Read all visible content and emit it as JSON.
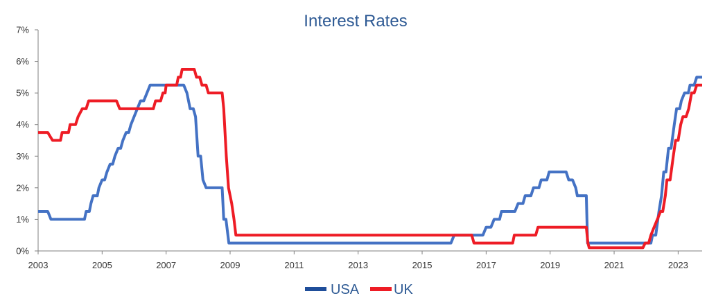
{
  "chart_data": {
    "type": "line",
    "title": "Interest Rates",
    "xlabel": "",
    "ylabel": "",
    "xlim": [
      2003.0,
      2023.75
    ],
    "ylim": [
      0,
      7
    ],
    "x_ticks": [
      2003,
      2005,
      2007,
      2009,
      2011,
      2013,
      2015,
      2017,
      2019,
      2021,
      2023
    ],
    "x_tick_labels": [
      "2003",
      "2005",
      "2007",
      "2009",
      "2011",
      "2013",
      "2015",
      "2017",
      "2019",
      "2021",
      "2023"
    ],
    "y_ticks": [
      0,
      1,
      2,
      3,
      4,
      5,
      6,
      7
    ],
    "y_tick_labels": [
      "0%",
      "1%",
      "2%",
      "3%",
      "4%",
      "5%",
      "6%",
      "7%"
    ],
    "grid": false,
    "legend_position": "bottom-center",
    "series": [
      {
        "name": "USA",
        "color": "#4472c4",
        "legend_color": "#1f4e9a",
        "points": [
          [
            2003.0,
            1.25
          ],
          [
            2003.3,
            1.25
          ],
          [
            2003.4,
            1.0
          ],
          [
            2004.45,
            1.0
          ],
          [
            2004.5,
            1.25
          ],
          [
            2004.6,
            1.25
          ],
          [
            2004.65,
            1.5
          ],
          [
            2004.72,
            1.75
          ],
          [
            2004.85,
            1.75
          ],
          [
            2004.9,
            2.0
          ],
          [
            2005.0,
            2.25
          ],
          [
            2005.08,
            2.25
          ],
          [
            2005.15,
            2.5
          ],
          [
            2005.25,
            2.75
          ],
          [
            2005.33,
            2.75
          ],
          [
            2005.4,
            3.0
          ],
          [
            2005.5,
            3.25
          ],
          [
            2005.58,
            3.25
          ],
          [
            2005.65,
            3.5
          ],
          [
            2005.75,
            3.75
          ],
          [
            2005.83,
            3.75
          ],
          [
            2005.9,
            4.0
          ],
          [
            2006.0,
            4.25
          ],
          [
            2006.1,
            4.5
          ],
          [
            2006.2,
            4.75
          ],
          [
            2006.3,
            4.75
          ],
          [
            2006.4,
            5.0
          ],
          [
            2006.5,
            5.25
          ],
          [
            2007.55,
            5.25
          ],
          [
            2007.65,
            5.0
          ],
          [
            2007.75,
            4.5
          ],
          [
            2007.85,
            4.5
          ],
          [
            2007.92,
            4.25
          ],
          [
            2008.0,
            3.0
          ],
          [
            2008.08,
            3.0
          ],
          [
            2008.15,
            2.25
          ],
          [
            2008.25,
            2.0
          ],
          [
            2008.75,
            2.0
          ],
          [
            2008.8,
            1.0
          ],
          [
            2008.87,
            1.0
          ],
          [
            2008.96,
            0.25
          ],
          [
            2015.9,
            0.25
          ],
          [
            2016.0,
            0.5
          ],
          [
            2016.9,
            0.5
          ],
          [
            2017.0,
            0.75
          ],
          [
            2017.15,
            0.75
          ],
          [
            2017.25,
            1.0
          ],
          [
            2017.42,
            1.0
          ],
          [
            2017.48,
            1.25
          ],
          [
            2017.9,
            1.25
          ],
          [
            2018.0,
            1.5
          ],
          [
            2018.15,
            1.5
          ],
          [
            2018.22,
            1.75
          ],
          [
            2018.4,
            1.75
          ],
          [
            2018.48,
            2.0
          ],
          [
            2018.65,
            2.0
          ],
          [
            2018.72,
            2.25
          ],
          [
            2018.9,
            2.25
          ],
          [
            2018.97,
            2.5
          ],
          [
            2019.5,
            2.5
          ],
          [
            2019.58,
            2.25
          ],
          [
            2019.7,
            2.25
          ],
          [
            2019.8,
            2.0
          ],
          [
            2019.85,
            1.75
          ],
          [
            2020.13,
            1.75
          ],
          [
            2020.17,
            0.25
          ],
          [
            2022.15,
            0.25
          ],
          [
            2022.2,
            0.5
          ],
          [
            2022.3,
            0.5
          ],
          [
            2022.4,
            1.25
          ],
          [
            2022.48,
            1.75
          ],
          [
            2022.55,
            2.5
          ],
          [
            2022.62,
            2.5
          ],
          [
            2022.7,
            3.25
          ],
          [
            2022.78,
            3.25
          ],
          [
            2022.88,
            4.0
          ],
          [
            2022.95,
            4.5
          ],
          [
            2023.05,
            4.5
          ],
          [
            2023.1,
            4.75
          ],
          [
            2023.2,
            5.0
          ],
          [
            2023.32,
            5.0
          ],
          [
            2023.37,
            5.25
          ],
          [
            2023.5,
            5.25
          ],
          [
            2023.58,
            5.5
          ],
          [
            2023.75,
            5.5
          ]
        ]
      },
      {
        "name": "UK",
        "color": "#ee1c25",
        "legend_color": "#ee1c25",
        "points": [
          [
            2003.0,
            3.75
          ],
          [
            2003.3,
            3.75
          ],
          [
            2003.45,
            3.5
          ],
          [
            2003.7,
            3.5
          ],
          [
            2003.75,
            3.75
          ],
          [
            2003.95,
            3.75
          ],
          [
            2004.0,
            4.0
          ],
          [
            2004.17,
            4.0
          ],
          [
            2004.25,
            4.25
          ],
          [
            2004.38,
            4.5
          ],
          [
            2004.5,
            4.5
          ],
          [
            2004.58,
            4.75
          ],
          [
            2005.45,
            4.75
          ],
          [
            2005.55,
            4.5
          ],
          [
            2006.6,
            4.5
          ],
          [
            2006.67,
            4.75
          ],
          [
            2006.83,
            4.75
          ],
          [
            2006.9,
            5.0
          ],
          [
            2006.97,
            5.0
          ],
          [
            2007.0,
            5.25
          ],
          [
            2007.33,
            5.25
          ],
          [
            2007.38,
            5.5
          ],
          [
            2007.45,
            5.5
          ],
          [
            2007.5,
            5.75
          ],
          [
            2007.88,
            5.75
          ],
          [
            2007.95,
            5.5
          ],
          [
            2008.05,
            5.5
          ],
          [
            2008.12,
            5.25
          ],
          [
            2008.25,
            5.25
          ],
          [
            2008.32,
            5.0
          ],
          [
            2008.75,
            5.0
          ],
          [
            2008.8,
            4.5
          ],
          [
            2008.88,
            3.0
          ],
          [
            2008.95,
            2.0
          ],
          [
            2009.05,
            1.5
          ],
          [
            2009.12,
            1.0
          ],
          [
            2009.18,
            0.5
          ],
          [
            2016.55,
            0.5
          ],
          [
            2016.62,
            0.25
          ],
          [
            2017.83,
            0.25
          ],
          [
            2017.88,
            0.5
          ],
          [
            2018.55,
            0.5
          ],
          [
            2018.62,
            0.75
          ],
          [
            2020.13,
            0.75
          ],
          [
            2020.18,
            0.25
          ],
          [
            2020.22,
            0.1
          ],
          [
            2021.9,
            0.1
          ],
          [
            2021.97,
            0.25
          ],
          [
            2022.08,
            0.25
          ],
          [
            2022.15,
            0.5
          ],
          [
            2022.25,
            0.75
          ],
          [
            2022.35,
            1.0
          ],
          [
            2022.45,
            1.25
          ],
          [
            2022.52,
            1.25
          ],
          [
            2022.6,
            1.75
          ],
          [
            2022.65,
            2.25
          ],
          [
            2022.75,
            2.25
          ],
          [
            2022.85,
            3.0
          ],
          [
            2022.92,
            3.5
          ],
          [
            2023.0,
            3.5
          ],
          [
            2023.08,
            4.0
          ],
          [
            2023.15,
            4.25
          ],
          [
            2023.25,
            4.25
          ],
          [
            2023.33,
            4.5
          ],
          [
            2023.42,
            5.0
          ],
          [
            2023.5,
            5.0
          ],
          [
            2023.58,
            5.25
          ],
          [
            2023.75,
            5.25
          ]
        ]
      }
    ]
  }
}
